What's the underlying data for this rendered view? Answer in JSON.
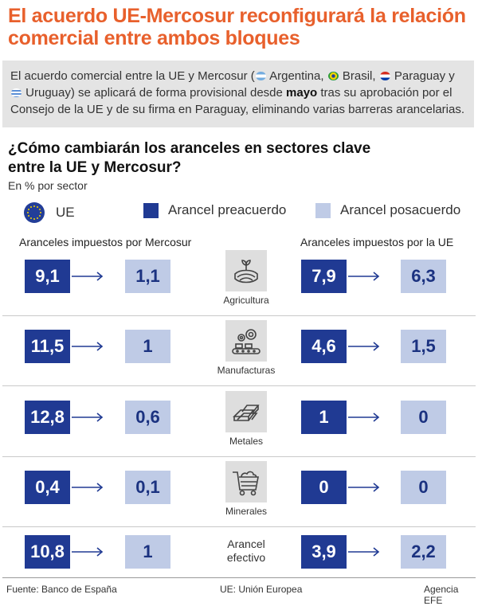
{
  "title": "El acuerdo UE-Mercosur reconfigurará la relación comercial entre ambos bloques",
  "intro": {
    "p1": "El acuerdo comercial entre la UE y Mercosur (",
    "c1": "Argentina,",
    "c2": "Brasil,",
    "c3": "Paraguay y",
    "c4": "Uruguay)",
    "p2": " se aplicará de forma provisional desde ",
    "bold": "mayo",
    "p3": " tras su aprobación por el Consejo de la UE y de su firma en Paraguay, eliminando varias barreras arancelarias."
  },
  "colors": {
    "title": "#e8602c",
    "pre": "#203a93",
    "post": "#bfcbe6",
    "eu": "#233e98"
  },
  "chart_data": {
    "type": "table",
    "title": "¿Cómo cambiarán los aranceles en sectores clave entre la UE y Mercosur?",
    "unit": "En % por sector",
    "legend": {
      "eu": "UE",
      "pre": "Arancel preacuerdo",
      "post": "Arancel posacuerdo"
    },
    "left_header": "Aranceles impuestos por Mercosur",
    "right_header": "Aranceles impuestos por la UE",
    "rows": [
      {
        "category": "Agricultura",
        "icon": "agriculture-icon",
        "mercosur_pre": "9,1",
        "mercosur_post": "1,1",
        "eu_pre": "7,9",
        "eu_post": "6,3"
      },
      {
        "category": "Manufacturas",
        "icon": "factory-icon",
        "mercosur_pre": "11,5",
        "mercosur_post": "1",
        "eu_pre": "4,6",
        "eu_post": "1,5"
      },
      {
        "category": "Metales",
        "icon": "metal-bars-icon",
        "mercosur_pre": "12,8",
        "mercosur_post": "0,6",
        "eu_pre": "1",
        "eu_post": "0"
      },
      {
        "category": "Minerales",
        "icon": "mine-cart-icon",
        "mercosur_pre": "0,4",
        "mercosur_post": "0,1",
        "eu_pre": "0",
        "eu_post": "0"
      },
      {
        "category": "Arancel\nefectivo",
        "icon": "",
        "mercosur_pre": "10,8",
        "mercosur_post": "1",
        "eu_pre": "3,9",
        "eu_post": "2,2"
      }
    ]
  },
  "footer": {
    "source": "Fuente: Banco de España",
    "note": "UE: Unión Europea",
    "agency": "Agencia EFE"
  }
}
